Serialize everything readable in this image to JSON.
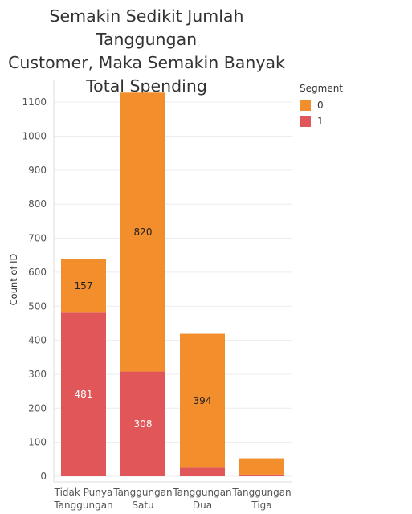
{
  "title_lines": [
    "Semakin Sedikit Jumlah Tanggungan",
    "Customer, Maka Semakin Banyak",
    "Total Spending"
  ],
  "legend": {
    "title": "Segment",
    "items": [
      {
        "label": "0",
        "color": "#F28E2B"
      },
      {
        "label": "1",
        "color": "#E15759"
      }
    ]
  },
  "chart_data": {
    "type": "bar",
    "stacked": true,
    "title": "Semakin Sedikit Jumlah Tanggungan Customer, Maka Semakin Banyak Total Spending",
    "xlabel": "",
    "ylabel": "Count of ID",
    "ylim": [
      0,
      1160
    ],
    "yticks": [
      0,
      100,
      200,
      300,
      400,
      500,
      600,
      700,
      800,
      900,
      1000,
      1100
    ],
    "grid": true,
    "legend_position": "top-right",
    "categories": [
      [
        "Tidak Punya",
        "Tanggungan"
      ],
      [
        "Tanggungan",
        "Satu"
      ],
      [
        "Tanggungan",
        "Dua"
      ],
      [
        "Tanggungan",
        "Tiga"
      ]
    ],
    "series": [
      {
        "name": "1",
        "color": "#E15759",
        "values": [
          481,
          308,
          25,
          5
        ],
        "labels": [
          "481",
          "308",
          "",
          ""
        ]
      },
      {
        "name": "0",
        "color": "#F28E2B",
        "values": [
          157,
          820,
          394,
          48
        ],
        "labels": [
          "157",
          "820",
          "394",
          ""
        ]
      }
    ]
  }
}
